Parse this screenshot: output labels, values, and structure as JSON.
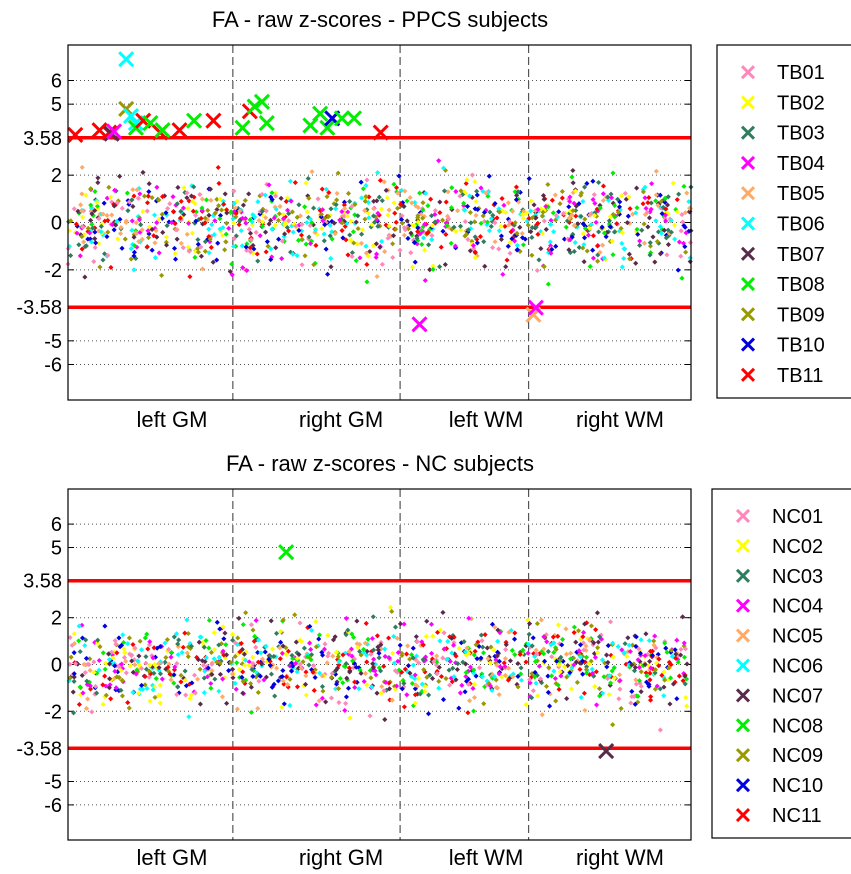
{
  "chart_data": [
    {
      "type": "scatter",
      "title": "FA - raw z-scores - PPCS subjects",
      "xlabel": "",
      "ylabel": "",
      "ylim": [
        -7.5,
        7.5
      ],
      "yticks": [
        6,
        5,
        3.58,
        2,
        0,
        -2,
        -3.58,
        -5,
        -6
      ],
      "ytick_labels": [
        "6",
        "5",
        "3.58",
        "2",
        "0",
        "-2",
        "-3.58",
        "-5",
        "-6"
      ],
      "regions": [
        "left GM",
        "right GM",
        "left WM",
        "right WM"
      ],
      "region_boundaries_x": [
        68,
        137,
        190
      ],
      "xlim": [
        0,
        257
      ],
      "thresholds": [
        3.58,
        -3.58
      ],
      "grid": true,
      "legend_position": "outside-right",
      "legend": [
        "TB01",
        "TB02",
        "TB03",
        "TB04",
        "TB05",
        "TB06",
        "TB07",
        "TB08",
        "TB09",
        "TB10",
        "TB11"
      ],
      "outliers": [
        {
          "subject": "TB11",
          "x": 3,
          "y": 3.7
        },
        {
          "subject": "TB11",
          "x": 13,
          "y": 3.9
        },
        {
          "subject": "TB11",
          "x": 17,
          "y": 3.8
        },
        {
          "subject": "TB07",
          "x": 18,
          "y": 3.75
        },
        {
          "subject": "TB04",
          "x": 19,
          "y": 3.85
        },
        {
          "subject": "TB06",
          "x": 24,
          "y": 6.9
        },
        {
          "subject": "TB09",
          "x": 24,
          "y": 4.8
        },
        {
          "subject": "TB06",
          "x": 26,
          "y": 4.5
        },
        {
          "subject": "TB06",
          "x": 28,
          "y": 4.2
        },
        {
          "subject": "TB08",
          "x": 28,
          "y": 4.0
        },
        {
          "subject": "TB11",
          "x": 31,
          "y": 4.3
        },
        {
          "subject": "TB08",
          "x": 34,
          "y": 4.2
        },
        {
          "subject": "TB11",
          "x": 38,
          "y": 3.8
        },
        {
          "subject": "TB08",
          "x": 39,
          "y": 3.9
        },
        {
          "subject": "TB11",
          "x": 46,
          "y": 3.9
        },
        {
          "subject": "TB08",
          "x": 52,
          "y": 4.3
        },
        {
          "subject": "TB11",
          "x": 60,
          "y": 4.3
        },
        {
          "subject": "TB08",
          "x": 72,
          "y": 4.0
        },
        {
          "subject": "TB11",
          "x": 75,
          "y": 4.7
        },
        {
          "subject": "TB08",
          "x": 77,
          "y": 4.9
        },
        {
          "subject": "TB08",
          "x": 80,
          "y": 5.1
        },
        {
          "subject": "TB08",
          "x": 82,
          "y": 4.2
        },
        {
          "subject": "TB08",
          "x": 100,
          "y": 4.1
        },
        {
          "subject": "TB08",
          "x": 104,
          "y": 4.6
        },
        {
          "subject": "TB08",
          "x": 107,
          "y": 4.0
        },
        {
          "subject": "TB10",
          "x": 109,
          "y": 4.4
        },
        {
          "subject": "TB08",
          "x": 113,
          "y": 4.4
        },
        {
          "subject": "TB08",
          "x": 118,
          "y": 4.4
        },
        {
          "subject": "TB11",
          "x": 129,
          "y": 3.8
        },
        {
          "subject": "TB04",
          "x": 145,
          "y": -4.3
        },
        {
          "subject": "TB05",
          "x": 192,
          "y": -3.9
        },
        {
          "subject": "TB04",
          "x": 193,
          "y": -3.6
        }
      ]
    },
    {
      "type": "scatter",
      "title": "FA - raw z-scores - NC subjects",
      "xlabel": "",
      "ylabel": "",
      "ylim": [
        -7.5,
        7.5
      ],
      "yticks": [
        6,
        5,
        3.58,
        2,
        0,
        -2,
        -3.58,
        -5,
        -6
      ],
      "ytick_labels": [
        "6",
        "5",
        "3.58",
        "2",
        "0",
        "-2",
        "-3.58",
        "-5",
        "-6"
      ],
      "regions": [
        "left GM",
        "right GM",
        "left WM",
        "right WM"
      ],
      "region_boundaries_x": [
        68,
        137,
        190
      ],
      "xlim": [
        0,
        257
      ],
      "thresholds": [
        3.58,
        -3.58
      ],
      "grid": true,
      "legend_position": "outside-right",
      "legend": [
        "NC01",
        "NC02",
        "NC03",
        "NC04",
        "NC05",
        "NC06",
        "NC07",
        "NC08",
        "NC09",
        "NC10",
        "NC11"
      ],
      "outliers": [
        {
          "subject": "NC08",
          "x": 90,
          "y": 4.8
        },
        {
          "subject": "NC07",
          "x": 222,
          "y": -3.7
        }
      ]
    }
  ],
  "subject_colors": [
    "#ff88bb",
    "#ffff00",
    "#2e7d5e",
    "#ff00ff",
    "#ffaa66",
    "#00ffff",
    "#5a2a4a",
    "#00ee00",
    "#999900",
    "#0000dd",
    "#ff0000"
  ],
  "threshold_color": "#ff0000"
}
